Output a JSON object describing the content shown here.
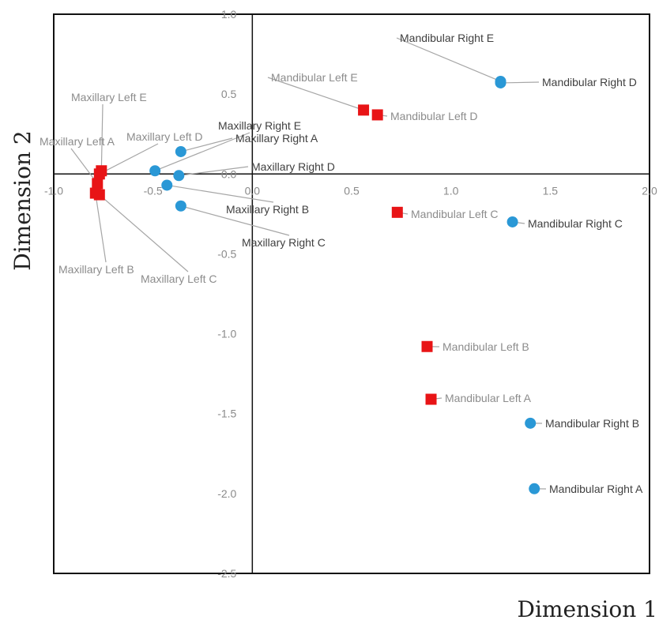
{
  "chart_data": {
    "type": "scatter",
    "xlabel": "Dimension 1",
    "ylabel": "Dimension 2",
    "xlim": [
      -1.0,
      2.0
    ],
    "ylim": [
      -2.5,
      1.0
    ],
    "x_ticks": [
      "-1.0",
      "-0.5",
      "0.0",
      "0.5",
      "1.0",
      "1.5",
      "2.0"
    ],
    "y_ticks": [
      "1.0",
      "0.5",
      "0.0",
      "-0.5",
      "-1.0",
      "-1.5",
      "-2.0",
      "-2.5"
    ],
    "grid": false,
    "colors": {
      "square": "#e81416",
      "circle": "#2a98d6",
      "leader": "#a6a6a6",
      "label_dark": "#404040",
      "label_light": "#8c8c8c"
    },
    "series": [
      {
        "marker": "square",
        "points": [
          {
            "label": "Maxillary  Left A",
            "x": -0.78,
            "y": -0.06
          },
          {
            "label": "Maxillary  Left B",
            "x": -0.79,
            "y": -0.12
          },
          {
            "label": "Maxillary  Left C",
            "x": -0.77,
            "y": -0.13
          },
          {
            "label": "Maxillary  Left D",
            "x": -0.77,
            "y": 0.0
          },
          {
            "label": "Maxillary  Left E",
            "x": -0.76,
            "y": 0.02
          },
          {
            "label": "Mandibular Left A",
            "x": 0.9,
            "y": -1.41
          },
          {
            "label": "Mandibular Left B",
            "x": 0.88,
            "y": -1.08
          },
          {
            "label": "Mandibular Left C",
            "x": 0.73,
            "y": -0.24
          },
          {
            "label": "Mandibular Left D",
            "x": 0.63,
            "y": 0.37
          },
          {
            "label": "Mandibular Left E",
            "x": 0.56,
            "y": 0.4
          }
        ]
      },
      {
        "marker": "circle",
        "points": [
          {
            "label": "Maxillary  Right A",
            "x": -0.36,
            "y": 0.14
          },
          {
            "label": "Maxillary  Right B",
            "x": -0.43,
            "y": -0.07
          },
          {
            "label": "Maxillary  Right C",
            "x": -0.36,
            "y": -0.2
          },
          {
            "label": "Maxillary  Right D",
            "x": -0.37,
            "y": -0.01
          },
          {
            "label": "Maxillary  Right E",
            "x": -0.49,
            "y": 0.02
          },
          {
            "label": "Mandibular Right A",
            "x": 1.42,
            "y": -1.97
          },
          {
            "label": "Mandibular Right B",
            "x": 1.4,
            "y": -1.56
          },
          {
            "label": "Mandibular Right C",
            "x": 1.31,
            "y": -0.3
          },
          {
            "label": "Mandibular Right D",
            "x": 1.25,
            "y": 0.57
          },
          {
            "label": "Mandibular Right E",
            "x": 1.25,
            "y": 0.58
          }
        ]
      }
    ]
  }
}
